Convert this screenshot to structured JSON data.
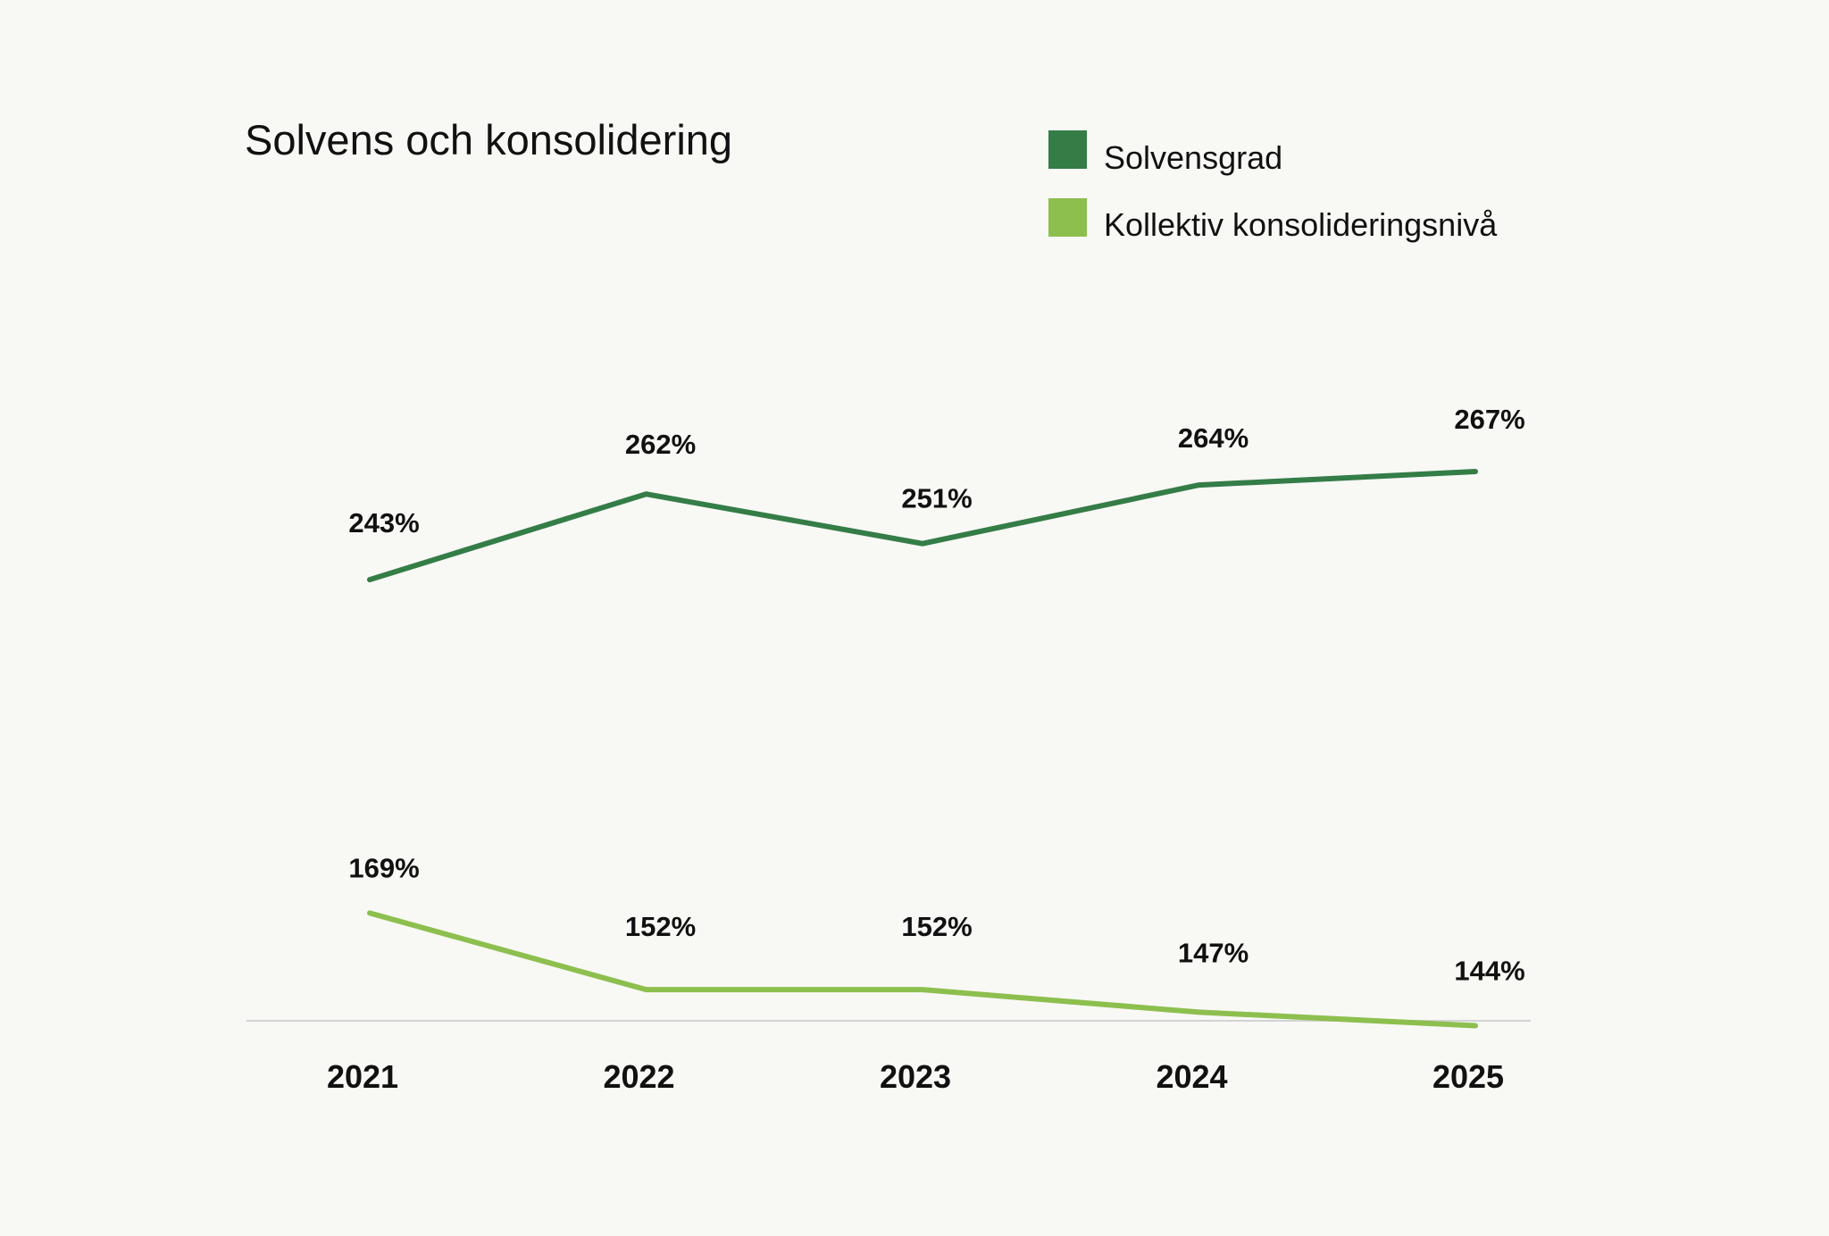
{
  "chart_data": {
    "type": "line",
    "title": "Solvens och konsolidering",
    "categories": [
      "2021",
      "2022",
      "2023",
      "2024",
      "2025"
    ],
    "series": [
      {
        "name": "Solvensgrad",
        "color": "#347d47",
        "values": [
          243,
          262,
          251,
          264,
          267
        ],
        "labels": [
          "243%",
          "262%",
          "251%",
          "264%",
          "267%"
        ]
      },
      {
        "name": "Kollektiv konsolideringsnivå",
        "color": "#8dbf4e",
        "values": [
          169,
          152,
          152,
          147,
          144
        ],
        "labels": [
          "169%",
          "152%",
          "152%",
          "147%",
          "144%"
        ]
      }
    ],
    "xlabel": "",
    "ylabel": "",
    "ylim": [
      100,
      300
    ],
    "grid": false,
    "legend": "top-right",
    "axis_color": "#d3d3d3"
  }
}
